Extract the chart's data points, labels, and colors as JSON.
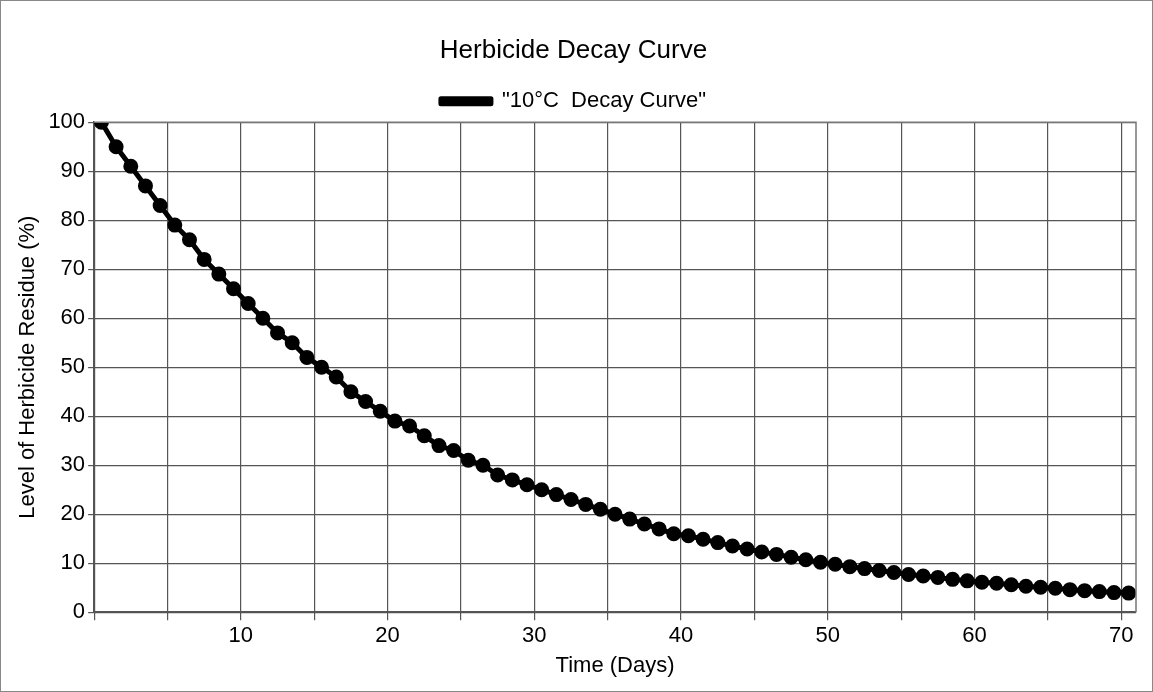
{
  "chart_data": {
    "type": "line",
    "title": "Herbicide Decay Curve",
    "xlabel": "Time (Days)",
    "ylabel": "Level of Herbicide Residue (%)",
    "x": [
      0.5,
      1.5,
      2.5,
      3.5,
      4.5,
      5.5,
      6.5,
      7.5,
      8.5,
      9.5,
      10.5,
      11.5,
      12.5,
      13.5,
      14.5,
      15.5,
      16.5,
      17.5,
      18.5,
      19.5,
      20.5,
      21.5,
      22.5,
      23.5,
      24.5,
      25.5,
      26.5,
      27.5,
      28.5,
      29.5,
      30.5,
      31.5,
      32.5,
      33.5,
      34.5,
      35.5,
      36.5,
      37.5,
      38.5,
      39.5,
      40.5,
      41.5,
      42.5,
      43.5,
      44.5,
      45.5,
      46.5,
      47.5,
      48.5,
      49.5,
      50.5,
      51.5,
      52.5,
      53.5,
      54.5,
      55.5,
      56.5,
      57.5,
      58.5,
      59.5,
      60.5,
      61.5,
      62.5,
      63.5,
      64.5,
      65.5,
      66.5,
      67.5,
      68.5,
      69.5,
      70.5
    ],
    "series": [
      {
        "name": "\"10°C  Decay Curve\"",
        "color": "#000000",
        "values": [
          100,
          95,
          91,
          87,
          83,
          79,
          76,
          72,
          69,
          66,
          63,
          60,
          57,
          55,
          52,
          50,
          48,
          45,
          43,
          41,
          39,
          38,
          36,
          34,
          33,
          31,
          30,
          28,
          27,
          26,
          25,
          24,
          23,
          22,
          21,
          20,
          19,
          18,
          17,
          16,
          15.6,
          14.9,
          14.2,
          13.5,
          12.9,
          12.3,
          11.8,
          11.2,
          10.7,
          10.2,
          9.8,
          9.3,
          8.9,
          8.5,
          8.1,
          7.7,
          7.4,
          7.1,
          6.7,
          6.4,
          6.1,
          5.9,
          5.6,
          5.3,
          5.1,
          4.9,
          4.6,
          4.4,
          4.2,
          4.0,
          3.9
        ]
      }
    ],
    "xlim": [
      0,
      71
    ],
    "ylim": [
      0,
      100
    ],
    "xticks": [
      {
        "value": 0,
        "label": null
      },
      {
        "value": 5,
        "label": null
      },
      10,
      {
        "value": 15,
        "label": null
      },
      20,
      {
        "value": 25,
        "label": null
      },
      30,
      {
        "value": 35,
        "label": null
      },
      40,
      {
        "value": 45,
        "label": null
      },
      50,
      {
        "value": 55,
        "label": null
      },
      60,
      {
        "value": 65,
        "label": null
      },
      70
    ],
    "yticks": [
      0,
      10,
      20,
      30,
      40,
      50,
      60,
      70,
      80,
      90,
      100
    ],
    "grid": true,
    "legend": "top",
    "marker": "circle",
    "line_style": "solid"
  }
}
